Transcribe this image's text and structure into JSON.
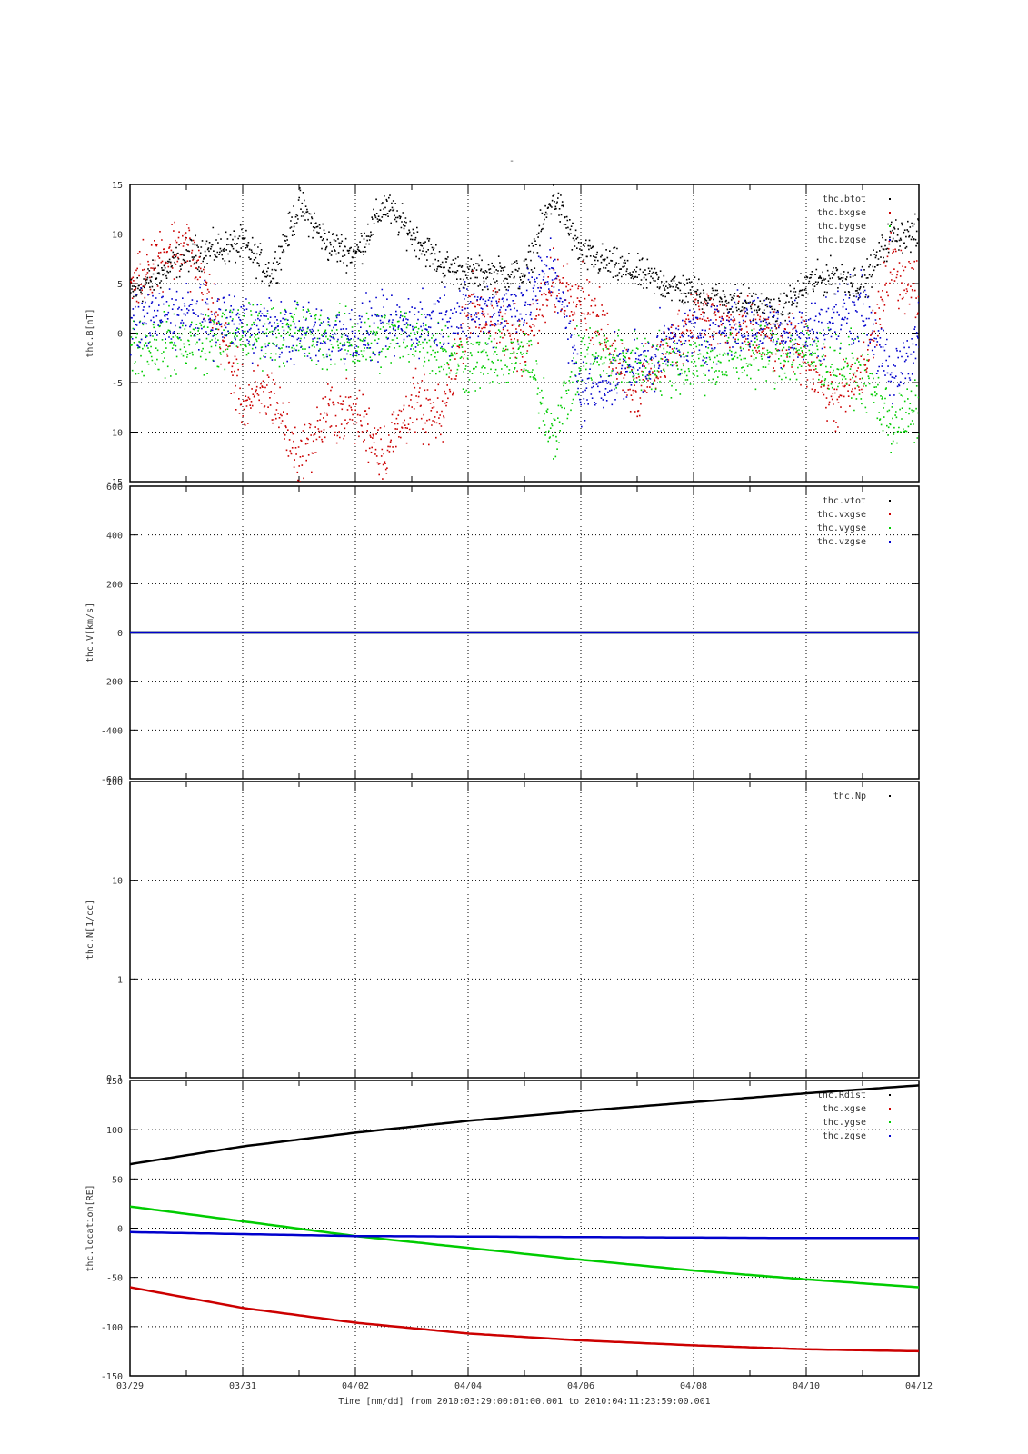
{
  "page": {
    "top_mark": "-",
    "footer": "Time [mm/dd]  from 2010:03:29:00:01:00.001  to  2010:04:11:23:59:00.001"
  },
  "x_axis": {
    "range": [
      "2010-03-29",
      "2010-04-12"
    ],
    "ticks": [
      "03/29",
      "03/31",
      "04/02",
      "04/04",
      "04/06",
      "04/08",
      "04/10",
      "04/12"
    ],
    "tick_days": [
      0,
      2,
      4,
      6,
      8,
      10,
      12,
      14
    ],
    "minor_step_days": 1
  },
  "colors": {
    "black": "#000000",
    "red": "#cc0000",
    "green": "#00cc00",
    "blue": "#0000cc",
    "grid": "#000000"
  },
  "chart_data": [
    {
      "type": "scatter",
      "ylabel": "thc.B[nT]",
      "ylim": [
        -15,
        15
      ],
      "y_ticks": [
        15,
        10,
        5,
        0,
        -5,
        -10,
        -15
      ],
      "scale": "linear",
      "grid": true,
      "legend_placement": "top-right",
      "series": [
        {
          "name": "thc.btot",
          "color": "#000000",
          "x": [
            "03/29",
            "03/30",
            "03/31",
            "03/31 12h",
            "04/01",
            "04/01 12h",
            "04/02",
            "04/02 12h",
            "04/03",
            "04/03 12h",
            "04/04",
            "04/05",
            "04/05 12h",
            "04/06",
            "04/07",
            "04/08",
            "04/09",
            "04/09 12h",
            "04/10",
            "04/10 12h",
            "04/11",
            "04/11 12h",
            "04/12"
          ],
          "values": [
            4,
            8,
            9,
            6,
            13,
            9,
            8,
            13,
            10,
            7,
            6,
            6,
            14,
            8,
            6,
            4,
            3,
            2,
            5,
            6,
            5,
            10,
            10
          ]
        },
        {
          "name": "thc.bxgse",
          "color": "#cc0000",
          "x": [
            "03/29",
            "03/29 12h",
            "03/30",
            "03/30 12h",
            "03/31",
            "03/31 12h",
            "04/01",
            "04/01 12h",
            "04/02",
            "04/02 12h",
            "04/03",
            "04/03 12h",
            "04/04",
            "04/05",
            "04/05 12h",
            "04/06",
            "04/07",
            "04/08",
            "04/09",
            "04/10",
            "04/10 12h",
            "04/11",
            "04/11 12h",
            "04/12"
          ],
          "values": [
            5,
            8,
            9,
            2,
            -7,
            -6,
            -13,
            -8,
            -8,
            -12,
            -7,
            -9,
            3,
            -1,
            5,
            4,
            -6,
            2,
            0,
            -2,
            -7,
            -4,
            7,
            4
          ]
        },
        {
          "name": "thc.bygse",
          "color": "#00cc00",
          "x": [
            "03/29",
            "03/30",
            "03/31",
            "04/01",
            "04/02",
            "04/03",
            "04/04",
            "04/05",
            "04/05 12h",
            "04/06",
            "04/07",
            "04/08",
            "04/09",
            "04/10",
            "04/11",
            "04/11 12h",
            "04/12"
          ],
          "values": [
            -1,
            -1,
            0,
            0,
            -1,
            0,
            -3,
            -2,
            -10,
            -2,
            -3,
            -3,
            -2,
            -2,
            -4,
            -9,
            -8
          ]
        },
        {
          "name": "thc.bzgse",
          "color": "#0000cc",
          "x": [
            "03/29",
            "03/30",
            "03/31",
            "04/01",
            "04/02",
            "04/03",
            "04/04",
            "04/05",
            "04/05 12h",
            "04/06",
            "04/07",
            "04/08",
            "04/09",
            "04/10",
            "04/11",
            "04/11 12h",
            "04/12"
          ],
          "values": [
            1,
            2,
            1,
            0,
            0,
            1,
            2,
            3,
            7,
            -6,
            -3,
            0,
            1,
            0,
            3,
            -5,
            0
          ]
        }
      ]
    },
    {
      "type": "scatter",
      "ylabel": "thc.V[km/s]",
      "ylim": [
        -600,
        600
      ],
      "y_ticks": [
        600,
        400,
        200,
        0,
        -200,
        -400,
        -600
      ],
      "scale": "linear",
      "grid": true,
      "legend_placement": "top-right",
      "series": [
        {
          "name": "thc.vtot",
          "color": "#000000",
          "x": [
            "03/29",
            "04/12"
          ],
          "values": [
            0,
            0
          ]
        },
        {
          "name": "thc.vxgse",
          "color": "#cc0000",
          "x": [
            "03/29",
            "04/12"
          ],
          "values": [
            0,
            0
          ]
        },
        {
          "name": "thc.vygse",
          "color": "#00cc00",
          "x": [
            "03/29",
            "04/12"
          ],
          "values": [
            0,
            0
          ]
        },
        {
          "name": "thc.vzgse",
          "color": "#0000cc",
          "x": [
            "03/29",
            "04/12"
          ],
          "values": [
            0,
            0
          ]
        }
      ]
    },
    {
      "type": "scatter",
      "ylabel": "thc.N[1/cc]",
      "ylim": [
        0.1,
        100
      ],
      "y_ticks": [
        100,
        10,
        1,
        0.1
      ],
      "scale": "log",
      "grid": true,
      "legend_placement": "top-right",
      "series": [
        {
          "name": "thc.Np",
          "color": "#000000",
          "x": [],
          "values": []
        }
      ]
    },
    {
      "type": "line",
      "ylabel": "thc.location[RE]",
      "ylim": [
        -150,
        150
      ],
      "y_ticks": [
        150,
        100,
        50,
        0,
        -50,
        -100,
        -150
      ],
      "scale": "linear",
      "grid": true,
      "legend_placement": "top-right",
      "series": [
        {
          "name": "thc.Rdist",
          "color": "#000000",
          "x": [
            "03/29",
            "03/31",
            "04/02",
            "04/04",
            "04/06",
            "04/08",
            "04/10",
            "04/12"
          ],
          "values": [
            65,
            83,
            97,
            109,
            119,
            128,
            137,
            145
          ]
        },
        {
          "name": "thc.xgse",
          "color": "#cc0000",
          "x": [
            "03/29",
            "03/31",
            "04/02",
            "04/04",
            "04/06",
            "04/08",
            "04/10",
            "04/12"
          ],
          "values": [
            -60,
            -81,
            -96,
            -107,
            -114,
            -119,
            -123,
            -125
          ]
        },
        {
          "name": "thc.ygse",
          "color": "#00cc00",
          "x": [
            "03/29",
            "03/31",
            "04/02",
            "04/04",
            "04/06",
            "04/08",
            "04/10",
            "04/12"
          ],
          "values": [
            22,
            7,
            -8,
            -20,
            -32,
            -43,
            -52,
            -60
          ]
        },
        {
          "name": "thc.zgse",
          "color": "#0000cc",
          "x": [
            "03/29",
            "03/31",
            "04/02",
            "04/04",
            "04/06",
            "04/08",
            "04/10",
            "04/12"
          ],
          "values": [
            -4,
            -6,
            -8,
            -8.5,
            -9,
            -9.5,
            -10,
            -10
          ]
        }
      ]
    }
  ]
}
